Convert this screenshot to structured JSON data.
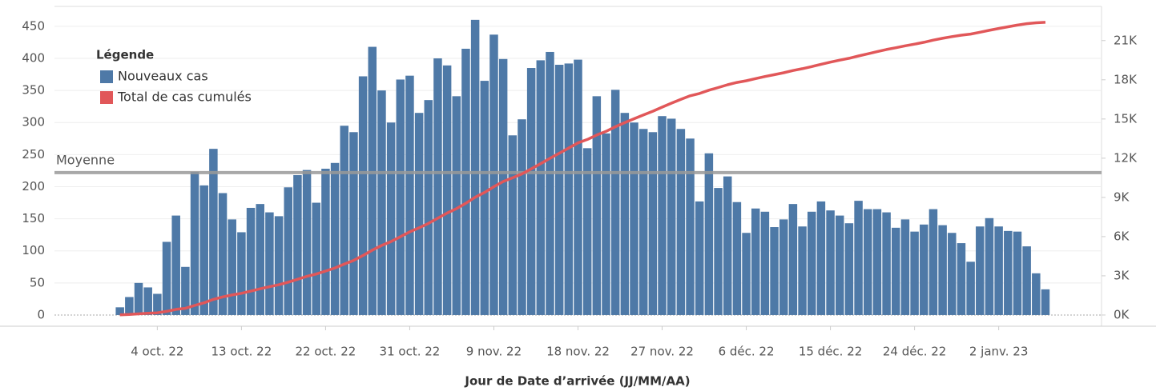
{
  "chart_data": {
    "type": "bar",
    "x_title": "Jour de Date d’arrivée (JJ/MM/AA)",
    "legend_title": "Légende",
    "legend": "top-left",
    "grid": true,
    "x": [
      "2022-09-30",
      "2022-10-01",
      "2022-10-02",
      "2022-10-03",
      "2022-10-04",
      "2022-10-05",
      "2022-10-06",
      "2022-10-07",
      "2022-10-08",
      "2022-10-09",
      "2022-10-10",
      "2022-10-11",
      "2022-10-12",
      "2022-10-13",
      "2022-10-14",
      "2022-10-15",
      "2022-10-16",
      "2022-10-17",
      "2022-10-18",
      "2022-10-19",
      "2022-10-20",
      "2022-10-21",
      "2022-10-22",
      "2022-10-23",
      "2022-10-24",
      "2022-10-25",
      "2022-10-26",
      "2022-10-27",
      "2022-10-28",
      "2022-10-29",
      "2022-10-30",
      "2022-10-31",
      "2022-11-01",
      "2022-11-02",
      "2022-11-03",
      "2022-11-04",
      "2022-11-05",
      "2022-11-06",
      "2022-11-07",
      "2022-11-08",
      "2022-11-09",
      "2022-11-10",
      "2022-11-11",
      "2022-11-12",
      "2022-11-13",
      "2022-11-14",
      "2022-11-15",
      "2022-11-16",
      "2022-11-17",
      "2022-11-18",
      "2022-11-19",
      "2022-11-20",
      "2022-11-21",
      "2022-11-22",
      "2022-11-23",
      "2022-11-24",
      "2022-11-25",
      "2022-11-26",
      "2022-11-27",
      "2022-11-28",
      "2022-11-29",
      "2022-11-30",
      "2022-12-01",
      "2022-12-02",
      "2022-12-03",
      "2022-12-04",
      "2022-12-05",
      "2022-12-06",
      "2022-12-07",
      "2022-12-08",
      "2022-12-09",
      "2022-12-10",
      "2022-12-11",
      "2022-12-12",
      "2022-12-13",
      "2022-12-14",
      "2022-12-15",
      "2022-12-16",
      "2022-12-17",
      "2022-12-18",
      "2022-12-19",
      "2022-12-20",
      "2022-12-21",
      "2022-12-22",
      "2022-12-23",
      "2022-12-24",
      "2022-12-25",
      "2022-12-26",
      "2022-12-27",
      "2022-12-28",
      "2022-12-29",
      "2022-12-30",
      "2022-12-31",
      "2023-01-01",
      "2023-01-02",
      "2023-01-03",
      "2023-01-04",
      "2023-01-05",
      "2023-01-06",
      "2023-01-07"
    ],
    "xlim": [
      "2022-09-23",
      "2023-01-13"
    ],
    "xticks": [
      {
        "value": "2022-10-04",
        "label": "4 oct. 22"
      },
      {
        "value": "2022-10-13",
        "label": "13 oct. 22"
      },
      {
        "value": "2022-10-22",
        "label": "22 oct. 22"
      },
      {
        "value": "2022-10-31",
        "label": "31 oct. 22"
      },
      {
        "value": "2022-11-09",
        "label": "9 nov. 22"
      },
      {
        "value": "2022-11-18",
        "label": "18 nov. 22"
      },
      {
        "value": "2022-11-27",
        "label": "27 nov. 22"
      },
      {
        "value": "2022-12-06",
        "label": "6 déc. 22"
      },
      {
        "value": "2022-12-15",
        "label": "15 déc. 22"
      },
      {
        "value": "2022-12-24",
        "label": "24 déc. 22"
      },
      {
        "value": "2023-01-02",
        "label": "2 janv. 23"
      }
    ],
    "ylim": [
      -17.5,
      481
    ],
    "yticks": [
      0,
      50,
      100,
      150,
      200,
      250,
      300,
      350,
      400,
      450
    ],
    "y2lim": [
      -859,
      23617
    ],
    "y2ticks": [
      {
        "value": 0,
        "label": "0K"
      },
      {
        "value": 3000,
        "label": "3K"
      },
      {
        "value": 6000,
        "label": "6K"
      },
      {
        "value": 9000,
        "label": "9K"
      },
      {
        "value": 12000,
        "label": "12K"
      },
      {
        "value": 15000,
        "label": "15K"
      },
      {
        "value": 18000,
        "label": "18K"
      },
      {
        "value": 21000,
        "label": "21K"
      }
    ],
    "reference_line": {
      "label": "Moyenne",
      "value": 222,
      "color": "#9a9a9a"
    },
    "series": [
      {
        "name": "Nouveaux cas",
        "type": "bar",
        "color": "#4e79a7",
        "values": [
          12,
          28,
          50,
          43,
          33,
          114,
          155,
          75,
          223,
          202,
          259,
          190,
          149,
          129,
          167,
          173,
          160,
          154,
          199,
          218,
          226,
          175,
          228,
          237,
          295,
          285,
          372,
          418,
          350,
          300,
          367,
          373,
          315,
          335,
          400,
          389,
          341,
          415,
          460,
          365,
          437,
          399,
          280,
          305,
          385,
          397,
          410,
          390,
          392,
          398,
          260,
          341,
          283,
          351,
          315,
          300,
          290,
          285,
          310,
          306,
          290,
          275,
          177,
          252,
          198,
          216,
          176,
          128,
          166,
          161,
          137,
          149,
          173,
          138,
          161,
          177,
          163,
          155,
          143,
          178,
          165,
          165,
          160,
          136,
          149,
          130,
          141,
          165,
          140,
          128,
          112,
          83,
          138,
          151,
          138,
          131,
          130,
          107,
          65,
          40
        ]
      },
      {
        "name": "Total de cas cumulés",
        "type": "line",
        "axis": "y2",
        "color": "#e15759",
        "values": [
          12,
          40,
          90,
          133,
          166,
          280,
          435,
          510,
          733,
          935,
          1194,
          1384,
          1533,
          1662,
          1829,
          2002,
          2162,
          2316,
          2515,
          2733,
          2959,
          3134,
          3362,
          3599,
          3894,
          4179,
          4551,
          4969,
          5319,
          5619,
          5986,
          6359,
          6674,
          7009,
          7409,
          7798,
          8139,
          8554,
          9014,
          9379,
          9816,
          10215,
          10495,
          10800,
          11185,
          11582,
          11992,
          12382,
          12774,
          13172,
          13432,
          13773,
          14056,
          14407,
          14722,
          15022,
          15312,
          15597,
          15907,
          16213,
          16503,
          16778,
          16955,
          17207,
          17405,
          17621,
          17797,
          17925,
          18091,
          18252,
          18389,
          18538,
          18711,
          18849,
          19010,
          19187,
          19350,
          19505,
          19648,
          19826,
          19991,
          20156,
          20316,
          20452,
          20601,
          20731,
          20872,
          21037,
          21177,
          21305,
          21417,
          21500,
          21638,
          21789,
          21927,
          22058,
          22188,
          22295,
          22360,
          22400
        ]
      }
    ]
  }
}
